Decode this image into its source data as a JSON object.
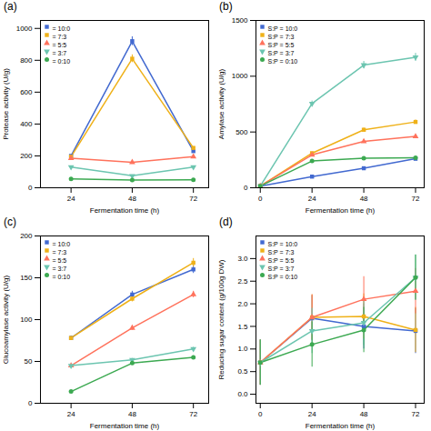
{
  "chart_data": [
    {
      "type": "line",
      "title": "(a)",
      "xlabel": "Fermentation time (h)",
      "ylabel": "Protease activity (U/g)",
      "x": [
        24,
        48,
        72
      ],
      "xlim": [
        12,
        78
      ],
      "xticks": [
        24,
        48,
        72
      ],
      "ylim": [
        0,
        1050
      ],
      "yticks": [
        0,
        200,
        400,
        600,
        800,
        1000
      ],
      "grid": false,
      "legend": "upper left",
      "series": [
        {
          "name": "= 10:0",
          "marker": "square",
          "values": [
            200,
            920,
            230
          ],
          "errors": [
            6,
            27.6,
            6.9
          ]
        },
        {
          "name": "= 7:3",
          "marker": "square",
          "values": [
            195,
            810,
            250
          ],
          "errors": [
            5.85,
            24.3,
            7.5
          ]
        },
        {
          "name": "= 5:5",
          "marker": "triangle-up",
          "values": [
            185,
            160,
            195
          ],
          "errors": [
            5.55,
            4.8,
            5.85
          ]
        },
        {
          "name": "= 3:7",
          "marker": "triangle-down",
          "values": [
            130,
            75,
            130
          ],
          "errors": [
            3.9,
            2.25,
            3.9
          ]
        },
        {
          "name": "= 0:10",
          "marker": "circle",
          "values": [
            55,
            48,
            50
          ],
          "errors": [
            1.65,
            1.44,
            1.5
          ]
        }
      ]
    },
    {
      "type": "line",
      "title": "(b)",
      "xlabel": "Fermentation time (h)",
      "ylabel": "Amylase activity (U/g)",
      "x": [
        0,
        24,
        48,
        72
      ],
      "xlim": [
        -2,
        76
      ],
      "xticks": [
        0,
        24,
        48,
        72
      ],
      "ylim": [
        0,
        1500
      ],
      "yticks": [
        0,
        500,
        1000,
        1500
      ],
      "grid": false,
      "legend": "upper left",
      "series": [
        {
          "name": "S:P = 10:0",
          "marker": "square",
          "values": [
            15,
            100,
            175,
            260
          ],
          "errors": [
            0.5,
            3,
            5.25,
            7.8
          ]
        },
        {
          "name": "S:P = 7:3",
          "marker": "square",
          "values": [
            15,
            310,
            520,
            590
          ],
          "errors": [
            0.5,
            9.3,
            15.6,
            17.7
          ]
        },
        {
          "name": "S:P = 5:5",
          "marker": "triangle-up",
          "values": [
            15,
            295,
            415,
            460
          ],
          "errors": [
            0.5,
            8.85,
            12.45,
            13.8
          ]
        },
        {
          "name": "S:P = 3:7",
          "marker": "triangle-down",
          "values": [
            15,
            755,
            1100,
            1170
          ],
          "errors": [
            0.5,
            22.65,
            33,
            35.1
          ]
        },
        {
          "name": "S:P = 0:10",
          "marker": "circle",
          "values": [
            15,
            240,
            265,
            270
          ],
          "errors": [
            0.5,
            7.2,
            7.95,
            8.1
          ]
        }
      ]
    },
    {
      "type": "line",
      "title": "(c)",
      "xlabel": "Fermentation time (h)",
      "ylabel": "Glucoamylase activity (U/g)",
      "x": [
        24,
        48,
        72
      ],
      "xlim": [
        12,
        78
      ],
      "xticks": [
        24,
        48,
        72
      ],
      "ylim": [
        0,
        200
      ],
      "yticks": [
        0,
        50,
        100,
        150,
        200
      ],
      "grid": false,
      "legend": "upper left",
      "series": [
        {
          "name": "= 10:0",
          "marker": "square",
          "values": [
            78,
            130,
            160
          ],
          "errors": [
            2.34,
            3.9,
            4.8
          ]
        },
        {
          "name": "= 7:3",
          "marker": "square",
          "values": [
            78,
            125,
            168
          ],
          "errors": [
            2.34,
            3.75,
            5.04
          ]
        },
        {
          "name": "= 5:5",
          "marker": "triangle-up",
          "values": [
            45,
            90,
            130
          ],
          "errors": [
            1.35,
            2.7,
            3.9
          ]
        },
        {
          "name": "= 3:7",
          "marker": "triangle-down",
          "values": [
            45,
            52,
            65
          ],
          "errors": [
            1.35,
            1.56,
            1.95
          ]
        },
        {
          "name": "= 0:10",
          "marker": "circle",
          "values": [
            14,
            48,
            55
          ],
          "errors": [
            0.5,
            1.44,
            1.65
          ]
        }
      ]
    },
    {
      "type": "line",
      "title": "(d)",
      "xlabel": "Fermentation time (h)",
      "ylabel": "Reducing sugar content (g/100g DW)",
      "x": [
        0,
        24,
        48,
        72
      ],
      "xlim": [
        -2,
        76
      ],
      "xticks": [
        0,
        24,
        48,
        72
      ],
      "ylim": [
        -0.2,
        3.5
      ],
      "yticks": [
        {
          "value": 0,
          "label": "0.0"
        },
        0.5,
        {
          "value": 1.0,
          "label": "1.0"
        },
        1.5,
        {
          "value": 2.0,
          "label": "2.0"
        },
        2.5,
        {
          "value": 3.0,
          "label": "3.0"
        }
      ],
      "grid": false,
      "legend": "upper left",
      "series": [
        {
          "name": "S:P = 10:0",
          "marker": "square",
          "values": [
            0.7,
            1.68,
            1.5,
            1.4
          ],
          "errors": [
            0.5,
            0.5,
            0.5,
            0.5
          ]
        },
        {
          "name": "S:P = 7:3",
          "marker": "square",
          "values": [
            0.7,
            1.7,
            1.72,
            1.42
          ],
          "errors": [
            0.5,
            0.5,
            0.5,
            0.5
          ]
        },
        {
          "name": "S:P = 5:5",
          "marker": "triangle-up",
          "values": [
            0.7,
            1.7,
            2.1,
            2.28
          ],
          "errors": [
            0.5,
            0.5,
            0.5,
            0.5
          ]
        },
        {
          "name": "S:P = 3:7",
          "marker": "triangle-down",
          "values": [
            0.7,
            1.4,
            1.58,
            2.58
          ],
          "errors": [
            0.5,
            0.5,
            0.5,
            0.5
          ]
        },
        {
          "name": "S:P = 0:10",
          "marker": "circle",
          "values": [
            0.7,
            1.1,
            1.42,
            2.58
          ],
          "errors": [
            0.5,
            0.5,
            0.5,
            0.5
          ]
        }
      ]
    }
  ]
}
